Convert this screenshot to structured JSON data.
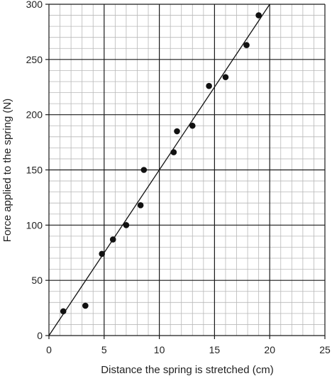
{
  "chart_data": {
    "type": "scatter",
    "xlabel": "Distance the spring is stretched (cm)",
    "ylabel": "Force applied to the spring (N)",
    "xlim": [
      0,
      25
    ],
    "ylim": [
      0,
      300
    ],
    "x_major_ticks": [
      0,
      5,
      10,
      15,
      20,
      25
    ],
    "y_major_ticks": [
      0,
      50,
      100,
      150,
      200,
      250,
      300
    ],
    "x_minor_step": 1,
    "y_minor_step": 10,
    "grid": true,
    "points": [
      {
        "x": 1.3,
        "y": 22
      },
      {
        "x": 3.3,
        "y": 27
      },
      {
        "x": 4.8,
        "y": 74
      },
      {
        "x": 5.8,
        "y": 87
      },
      {
        "x": 7.0,
        "y": 100
      },
      {
        "x": 8.3,
        "y": 118
      },
      {
        "x": 8.6,
        "y": 150
      },
      {
        "x": 11.3,
        "y": 166
      },
      {
        "x": 11.6,
        "y": 185
      },
      {
        "x": 13.0,
        "y": 190
      },
      {
        "x": 14.5,
        "y": 226
      },
      {
        "x": 16.0,
        "y": 234
      },
      {
        "x": 17.9,
        "y": 263
      },
      {
        "x": 19.0,
        "y": 290
      }
    ],
    "fit_line": {
      "x": [
        0,
        20
      ],
      "y": [
        0,
        300
      ]
    },
    "colors": {
      "grid_minor": "#b8b8b8",
      "grid_major": "#1a1a1a",
      "points": "#111111",
      "line": "#111111"
    }
  }
}
